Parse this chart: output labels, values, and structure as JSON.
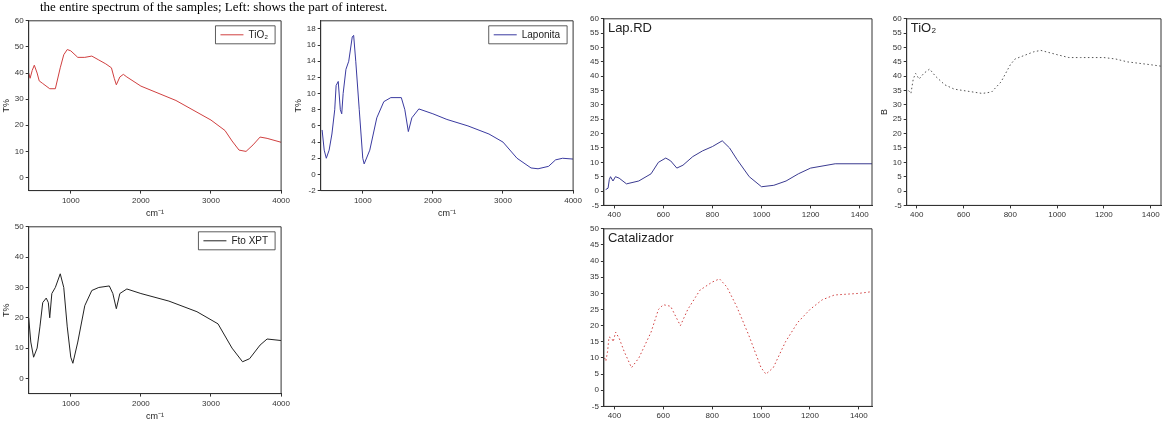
{
  "chart_data": [
    {
      "type": "line",
      "xlabel": "cm⁻¹",
      "ylabel": "T%",
      "xlim": [
        400,
        4000
      ],
      "ylim": [
        -5,
        60
      ],
      "xticks": [
        1000,
        2000,
        3000,
        4000
      ],
      "yticks": [
        0,
        10,
        20,
        30,
        40,
        50,
        60
      ],
      "legend": "top right",
      "annotations": [
        "the entire spectrum  of the samples; Left: shows the part of interest."
      ],
      "series": [
        {
          "name": "TiO₂",
          "color": "#d04040",
          "x": [
            400,
            420,
            450,
            480,
            520,
            550,
            600,
            700,
            780,
            850,
            900,
            950,
            1000,
            1100,
            1200,
            1300,
            1400,
            1500,
            1580,
            1620,
            1650,
            1700,
            1750,
            1800,
            2000,
            2500,
            3000,
            3200,
            3300,
            3400,
            3500,
            3600,
            3700,
            3800,
            4000
          ],
          "values": [
            40,
            38,
            41,
            43,
            40,
            37,
            36,
            34,
            34,
            42,
            47,
            49,
            48.5,
            46,
            46,
            46.5,
            45,
            43.5,
            42,
            38,
            35.5,
            38.5,
            39.5,
            38.5,
            35,
            29.5,
            22,
            18,
            14,
            10.5,
            10,
            12.5,
            15.5,
            15,
            13.5
          ]
        }
      ]
    },
    {
      "type": "line",
      "xlabel": "cm⁻¹",
      "ylabel": "T%",
      "xlim": [
        400,
        4000
      ],
      "ylim": [
        -2,
        19
      ],
      "xticks": [
        1000,
        2000,
        3000,
        4000
      ],
      "yticks": [
        -2,
        0,
        2,
        4,
        6,
        8,
        10,
        12,
        14,
        16,
        18
      ],
      "legend": "top right",
      "series": [
        {
          "name": "Laponita",
          "color": "#3a3aa0",
          "x": [
            420,
            450,
            480,
            520,
            560,
            600,
            620,
            650,
            680,
            700,
            720,
            760,
            800,
            850,
            870,
            900,
            950,
            1000,
            1020,
            1100,
            1200,
            1300,
            1400,
            1550,
            1600,
            1650,
            1700,
            1800,
            2000,
            2200,
            2500,
            2800,
            3000,
            3200,
            3400,
            3500,
            3650,
            3750,
            3850,
            4000
          ],
          "values": [
            5.5,
            3,
            2,
            3,
            5,
            8,
            11,
            11.5,
            8,
            7.5,
            10,
            13,
            14,
            17,
            17.2,
            14,
            8,
            2,
            1.3,
            3,
            7,
            9,
            9.5,
            9.5,
            8,
            5.3,
            7,
            8.1,
            7.5,
            6.8,
            6,
            5,
            4,
            2,
            0.8,
            0.7,
            1,
            1.8,
            2,
            1.9
          ]
        }
      ]
    },
    {
      "type": "line",
      "xlabel": "cm⁻¹",
      "ylabel": "T%",
      "xlim": [
        400,
        4000
      ],
      "ylim": [
        -5,
        50
      ],
      "xticks": [
        1000,
        2000,
        3000,
        4000
      ],
      "yticks": [
        0,
        10,
        20,
        30,
        40,
        50
      ],
      "legend": "top right",
      "series": [
        {
          "name": "Fto XPT",
          "color": "#222222",
          "x": [
            400,
            430,
            470,
            520,
            560,
            600,
            650,
            680,
            700,
            730,
            780,
            850,
            900,
            950,
            1000,
            1030,
            1100,
            1200,
            1300,
            1400,
            1550,
            1600,
            1650,
            1700,
            1800,
            2000,
            2400,
            2800,
            3100,
            3300,
            3450,
            3550,
            3700,
            3800,
            4000
          ],
          "values": [
            20,
            12,
            7,
            10,
            17,
            25,
            26.5,
            25,
            20,
            28,
            30,
            34.5,
            30,
            17,
            7,
            5,
            12,
            24,
            29,
            30,
            30.5,
            28,
            23,
            28,
            29.5,
            28,
            25.5,
            22,
            18,
            10,
            5.5,
            6.5,
            11,
            13,
            12.5
          ]
        }
      ]
    },
    {
      "type": "line",
      "title": "Lap.RD",
      "xlim": [
        358,
        1450
      ],
      "ylim": [
        -5,
        60
      ],
      "xticks": [
        400,
        600,
        800,
        1000,
        1200,
        1400
      ],
      "yticks": [
        -5,
        0,
        5,
        10,
        15,
        20,
        25,
        30,
        35,
        40,
        45,
        50,
        55,
        60
      ],
      "series": [
        {
          "color": "#3a3a90",
          "x": [
            365,
            375,
            380,
            385,
            395,
            405,
            420,
            450,
            500,
            550,
            580,
            610,
            630,
            655,
            680,
            720,
            760,
            800,
            840,
            870,
            900,
            950,
            1000,
            1050,
            1100,
            1150,
            1200,
            1300,
            1450
          ],
          "values": [
            0.5,
            1,
            4,
            5,
            3.5,
            5,
            4.5,
            2.5,
            3.5,
            6,
            10,
            11.5,
            10.5,
            8,
            9,
            12,
            14,
            15.5,
            17.5,
            15,
            11,
            5,
            1.5,
            2,
            3.5,
            6,
            8,
            9.5,
            9.5
          ]
        }
      ]
    },
    {
      "type": "line",
      "title": "TiO₂",
      "ylabel": "B",
      "xlim": [
        357,
        1444
      ],
      "ylim": [
        -5,
        60
      ],
      "xticks": [
        400,
        600,
        800,
        1000,
        1200,
        1400
      ],
      "yticks": [
        -5,
        0,
        5,
        10,
        15,
        20,
        25,
        30,
        35,
        40,
        45,
        50,
        55,
        60
      ],
      "line_style": "dotted",
      "series": [
        {
          "color": "#555555",
          "x": [
            365,
            375,
            385,
            395,
            410,
            430,
            455,
            480,
            520,
            560,
            600,
            680,
            720,
            760,
            800,
            820,
            900,
            930,
            1000,
            1050,
            1100,
            1200,
            1250,
            1300,
            1400,
            1444
          ],
          "values": [
            35,
            34,
            39,
            41,
            39,
            41,
            42.5,
            40,
            37,
            35.5,
            35,
            34,
            34.5,
            38,
            44,
            46,
            48.5,
            49,
            47.5,
            46.5,
            46.5,
            46.5,
            46,
            45,
            44,
            43.5
          ]
        }
      ]
    },
    {
      "type": "line",
      "title": "Catalizador",
      "xlim": [
        357,
        1454
      ],
      "ylim": [
        -5,
        50
      ],
      "xticks": [
        400,
        600,
        800,
        1000,
        1200,
        1400
      ],
      "yticks": [
        -5,
        0,
        5,
        10,
        15,
        20,
        25,
        30,
        35,
        40,
        45,
        50
      ],
      "line_style": "dotted",
      "series": [
        {
          "color": "#d04040",
          "x": [
            360,
            365,
            372,
            378,
            390,
            395,
            405,
            420,
            440,
            470,
            500,
            550,
            580,
            600,
            630,
            650,
            670,
            700,
            750,
            800,
            830,
            860,
            900,
            950,
            1000,
            1020,
            1050,
            1100,
            1150,
            1200,
            1250,
            1300,
            1400,
            1450
          ],
          "values": [
            10,
            9,
            12,
            16.5,
            16,
            15,
            18,
            16,
            12,
            7,
            10,
            18,
            25,
            26.5,
            26,
            23,
            20,
            25,
            31,
            33.5,
            34.5,
            32,
            26,
            17,
            7,
            5,
            7,
            15,
            21,
            25,
            28,
            29.5,
            30,
            30.5
          ]
        }
      ]
    }
  ]
}
